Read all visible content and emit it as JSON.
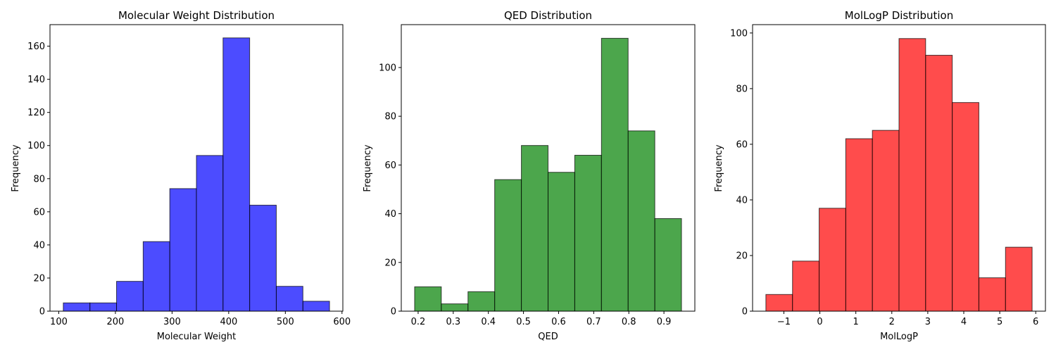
{
  "chart_data": [
    {
      "type": "bar",
      "title": "Molecular Weight Distribution",
      "xlabel": "Molecular Weight",
      "ylabel": "Frequency",
      "color": "#0000ff",
      "bin_edges": [
        108,
        155,
        202,
        249,
        296,
        343,
        390,
        437,
        484,
        531,
        578
      ],
      "values": [
        5,
        5,
        18,
        42,
        74,
        94,
        165,
        64,
        15,
        6
      ],
      "xlim": [
        84.5,
        601.5
      ],
      "ylim": [
        0,
        173
      ],
      "xticks": [
        100,
        200,
        300,
        400,
        500,
        600
      ],
      "xtick_labels": [
        "100",
        "200",
        "300",
        "400",
        "500",
        "600"
      ],
      "yticks": [
        0,
        20,
        40,
        60,
        80,
        100,
        120,
        140,
        160
      ],
      "ytick_labels": [
        "0",
        "20",
        "40",
        "60",
        "80",
        "100",
        "120",
        "140",
        "160"
      ]
    },
    {
      "type": "bar",
      "title": "QED Distribution",
      "xlabel": "QED",
      "ylabel": "Frequency",
      "color": "#008000",
      "bin_edges": [
        0.19,
        0.266,
        0.342,
        0.418,
        0.494,
        0.57,
        0.646,
        0.722,
        0.798,
        0.874,
        0.95
      ],
      "values": [
        10,
        3,
        8,
        54,
        68,
        57,
        64,
        112,
        74,
        38
      ],
      "xlim": [
        0.152,
        0.988
      ],
      "ylim": [
        0,
        117.6
      ],
      "xticks": [
        0.2,
        0.3,
        0.4,
        0.5,
        0.6,
        0.7,
        0.8,
        0.9
      ],
      "xtick_labels": [
        "0.2",
        "0.3",
        "0.4",
        "0.5",
        "0.6",
        "0.7",
        "0.8",
        "0.9"
      ],
      "yticks": [
        0,
        20,
        40,
        60,
        80,
        100
      ],
      "ytick_labels": [
        "0",
        "20",
        "40",
        "60",
        "80",
        "100"
      ]
    },
    {
      "type": "bar",
      "title": "MolLogP Distribution",
      "xlabel": "MolLogP",
      "ylabel": "Frequency",
      "color": "#ff0000",
      "bin_edges": [
        -1.5,
        -0.76,
        -0.02,
        0.72,
        1.46,
        2.2,
        2.94,
        3.68,
        4.42,
        5.16,
        5.9
      ],
      "values": [
        6,
        18,
        37,
        62,
        65,
        98,
        92,
        75,
        12,
        23
      ],
      "xlim": [
        -1.87,
        6.27
      ],
      "ylim": [
        0,
        103
      ],
      "xticks": [
        -1,
        0,
        1,
        2,
        3,
        4,
        5,
        6
      ],
      "xtick_labels": [
        "−1",
        "0",
        "1",
        "2",
        "3",
        "4",
        "5",
        "6"
      ],
      "yticks": [
        0,
        20,
        40,
        60,
        80,
        100
      ],
      "ytick_labels": [
        "0",
        "20",
        "40",
        "60",
        "80",
        "100"
      ]
    }
  ]
}
